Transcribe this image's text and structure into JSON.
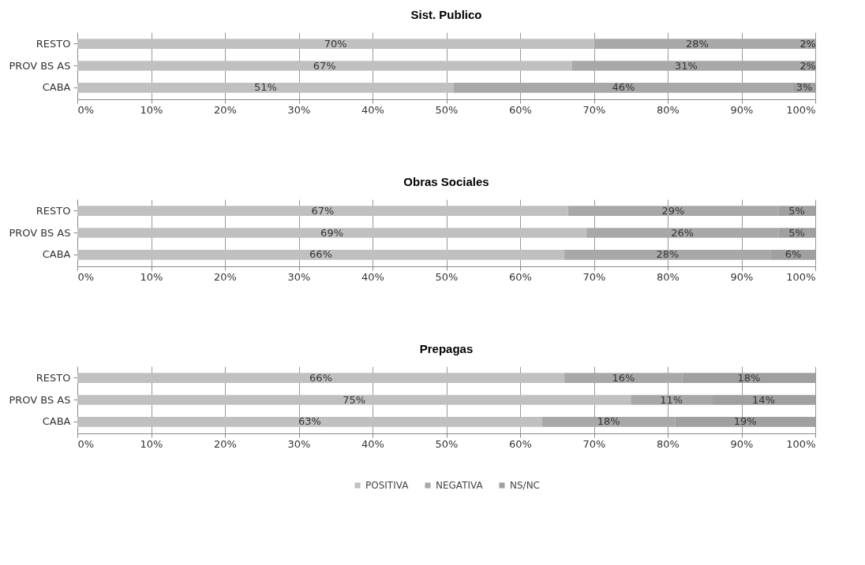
{
  "chart_data": [
    {
      "type": "bar",
      "orientation": "horizontal",
      "stacked": true,
      "title": "Sist. Publico",
      "categories": [
        "RESTO",
        "PROV BS AS",
        "CABA"
      ],
      "series": [
        {
          "name": "POSITIVA",
          "color": "#c0c0c0",
          "values": [
            70,
            67,
            51
          ],
          "value_labels": [
            "70%",
            "67%",
            "51%"
          ]
        },
        {
          "name": "NEGATIVA",
          "color": "#a8a8a8",
          "values": [
            28,
            31,
            46
          ],
          "value_labels": [
            "28%",
            "31%",
            "46%"
          ]
        },
        {
          "name": "NS/NC",
          "color": "#a0a0a0",
          "values": [
            2,
            2,
            3
          ],
          "value_labels": [
            "2%",
            "2%",
            "3%"
          ]
        }
      ],
      "xlim": [
        0,
        100
      ],
      "xticks": [
        {
          "value": 0,
          "label": "0%"
        },
        {
          "value": 10,
          "label": "10%"
        },
        {
          "value": 20,
          "label": "20%"
        },
        {
          "value": 30,
          "label": "30%"
        },
        {
          "value": 40,
          "label": "40%"
        },
        {
          "value": 50,
          "label": "50%"
        },
        {
          "value": 60,
          "label": "60%"
        },
        {
          "value": 70,
          "label": "70%"
        },
        {
          "value": 80,
          "label": "80%"
        },
        {
          "value": 90,
          "label": "90%"
        },
        {
          "value": 100,
          "label": "100%"
        }
      ],
      "grid": "x",
      "legend": "bottom"
    },
    {
      "type": "bar",
      "orientation": "horizontal",
      "stacked": true,
      "title": "Obras Sociales",
      "categories": [
        "RESTO",
        "PROV BS AS",
        "CABA"
      ],
      "series": [
        {
          "name": "POSITIVA",
          "color": "#c0c0c0",
          "values": [
            66.5,
            69,
            66
          ],
          "value_labels": [
            "67%",
            "69%",
            "66%"
          ]
        },
        {
          "name": "NEGATIVA",
          "color": "#a8a8a8",
          "values": [
            28.5,
            26,
            28
          ],
          "value_labels": [
            "29%",
            "26%",
            "28%"
          ]
        },
        {
          "name": "NS/NC",
          "color": "#a0a0a0",
          "values": [
            5,
            5,
            6
          ],
          "value_labels": [
            "5%",
            "5%",
            "6%"
          ]
        }
      ],
      "xlim": [
        0,
        100
      ],
      "xticks": [
        {
          "value": 0,
          "label": "0%"
        },
        {
          "value": 10,
          "label": "10%"
        },
        {
          "value": 20,
          "label": "20%"
        },
        {
          "value": 30,
          "label": "30%"
        },
        {
          "value": 40,
          "label": "40%"
        },
        {
          "value": 50,
          "label": "50%"
        },
        {
          "value": 60,
          "label": "60%"
        },
        {
          "value": 70,
          "label": "70%"
        },
        {
          "value": 80,
          "label": "80%"
        },
        {
          "value": 90,
          "label": "90%"
        },
        {
          "value": 100,
          "label": "100%"
        }
      ],
      "grid": "x",
      "legend": "bottom"
    },
    {
      "type": "bar",
      "orientation": "horizontal",
      "stacked": true,
      "title": "Prepagas",
      "categories": [
        "RESTO",
        "PROV BS AS",
        "CABA"
      ],
      "series": [
        {
          "name": "POSITIVA",
          "color": "#c0c0c0",
          "values": [
            66,
            75,
            63
          ],
          "value_labels": [
            "66%",
            "75%",
            "63%"
          ]
        },
        {
          "name": "NEGATIVA",
          "color": "#a8a8a8",
          "values": [
            16,
            11,
            18
          ],
          "value_labels": [
            "16%",
            "11%",
            "18%"
          ]
        },
        {
          "name": "NS/NC",
          "color": "#a0a0a0",
          "values": [
            18,
            14,
            19
          ],
          "value_labels": [
            "18%",
            "14%",
            "19%"
          ]
        }
      ],
      "xlim": [
        0,
        100
      ],
      "xticks": [
        {
          "value": 0,
          "label": "0%"
        },
        {
          "value": 10,
          "label": "10%"
        },
        {
          "value": 20,
          "label": "20%"
        },
        {
          "value": 30,
          "label": "30%"
        },
        {
          "value": 40,
          "label": "40%"
        },
        {
          "value": 50,
          "label": "50%"
        },
        {
          "value": 60,
          "label": "60%"
        },
        {
          "value": 70,
          "label": "70%"
        },
        {
          "value": 80,
          "label": "80%"
        },
        {
          "value": 90,
          "label": "90%"
        },
        {
          "value": 100,
          "label": "100%"
        }
      ],
      "grid": "x",
      "legend": "bottom"
    }
  ]
}
